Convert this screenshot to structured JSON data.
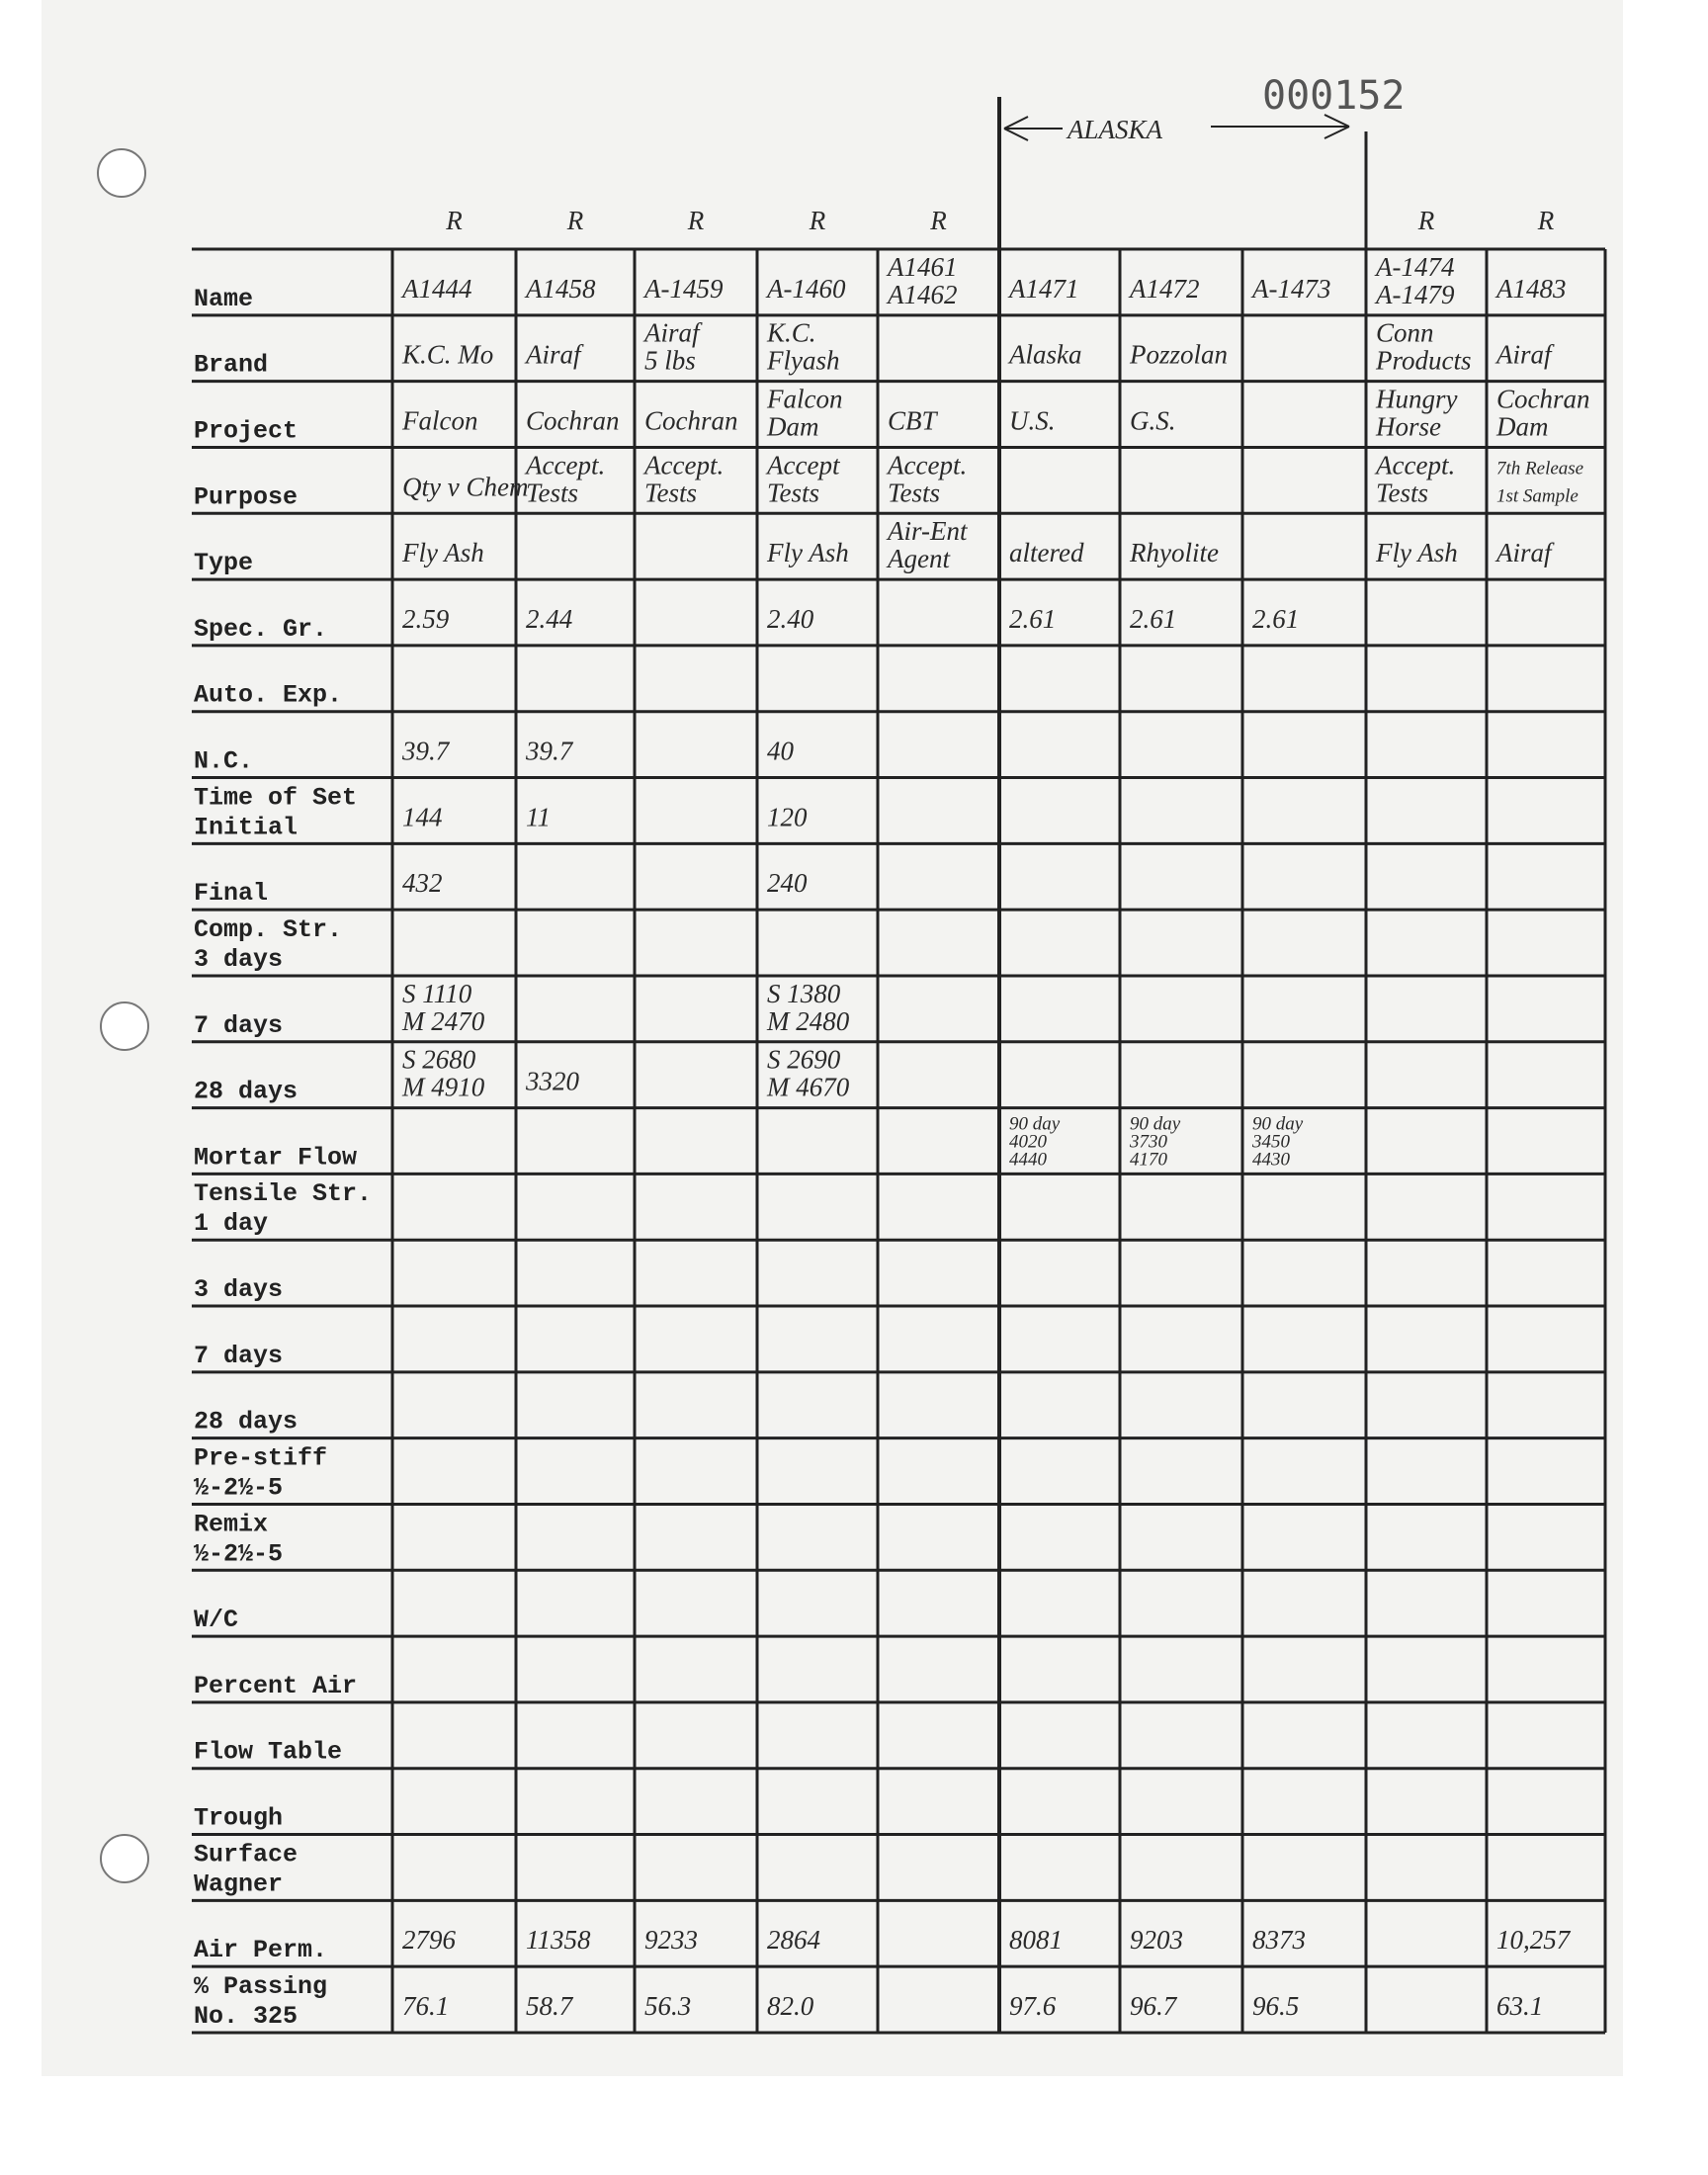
{
  "header": {
    "page_number": "000152",
    "region_label": "ALASKA",
    "marks": [
      "R",
      "R",
      "R",
      "R",
      "R",
      null,
      null,
      null,
      "R",
      "R"
    ]
  },
  "table": {
    "rows": [
      {
        "label": [
          "Name"
        ],
        "cells": [
          "A1444",
          "A1458",
          "A-1459",
          "A-1460",
          [
            "A1461",
            "A1462"
          ],
          "A1471",
          "A1472",
          "A-1473",
          [
            "A-1474",
            "A-1479"
          ],
          "A1483"
        ]
      },
      {
        "label": [
          "Brand"
        ],
        "cells": [
          "K.C. Mo",
          "Airaf",
          [
            "Airaf",
            "5 lbs"
          ],
          [
            "K.C.",
            "Flyash"
          ],
          null,
          "Alaska",
          "Pozzolan",
          null,
          [
            "Conn",
            "Products"
          ],
          "Airaf"
        ]
      },
      {
        "label": [
          "Project"
        ],
        "cells": [
          "Falcon",
          "Cochran",
          "Cochran",
          [
            "Falcon",
            "Dam"
          ],
          "CBT",
          "U.S.",
          "G.S.",
          null,
          [
            "Hungry",
            "Horse"
          ],
          [
            "Cochran",
            "Dam"
          ]
        ]
      },
      {
        "label": [
          "Purpose"
        ],
        "cells": [
          "Qty v Chem",
          [
            "Accept.",
            "Tests"
          ],
          [
            "Accept.",
            "Tests"
          ],
          [
            "Accept",
            "Tests"
          ],
          [
            "Accept.",
            "Tests"
          ],
          null,
          null,
          null,
          [
            "Accept.",
            "Tests"
          ],
          [
            "7th Release",
            "1st Sample"
          ]
        ]
      },
      {
        "label": [
          "Type"
        ],
        "cells": [
          "Fly Ash",
          null,
          null,
          "Fly Ash",
          [
            "Air-Ent",
            "Agent"
          ],
          "altered",
          "Rhyolite",
          null,
          "Fly Ash",
          "Airaf"
        ]
      },
      {
        "label": [
          "Spec. Gr."
        ],
        "cells": [
          "2.59",
          "2.44",
          null,
          "2.40",
          null,
          "2.61",
          "2.61",
          "2.61",
          null,
          null
        ]
      },
      {
        "label": [
          "Auto. Exp."
        ],
        "cells": [
          null,
          null,
          null,
          null,
          null,
          null,
          null,
          null,
          null,
          null
        ]
      },
      {
        "label": [
          "N.C."
        ],
        "cells": [
          "39.7",
          "39.7",
          null,
          "40",
          null,
          null,
          null,
          null,
          null,
          null
        ]
      },
      {
        "label": [
          "Time of Set",
          "Initial"
        ],
        "cells": [
          "144",
          "11",
          null,
          "120",
          null,
          null,
          null,
          null,
          null,
          null
        ]
      },
      {
        "label": [
          "Final"
        ],
        "cells": [
          "432",
          null,
          null,
          "240",
          null,
          null,
          null,
          null,
          null,
          null
        ]
      },
      {
        "label": [
          "Comp. Str.",
          "3 days"
        ],
        "cells": [
          null,
          null,
          null,
          null,
          null,
          null,
          null,
          null,
          null,
          null
        ]
      },
      {
        "label": [
          "7 days"
        ],
        "cells": [
          [
            "S 1110",
            "M 2470"
          ],
          null,
          null,
          [
            "S 1380",
            "M 2480"
          ],
          null,
          null,
          null,
          null,
          null,
          null
        ]
      },
      {
        "label": [
          "28 days"
        ],
        "cells": [
          [
            "S 2680",
            "M 4910"
          ],
          "3320",
          null,
          [
            "S 2690",
            "M 4670"
          ],
          null,
          null,
          null,
          null,
          null,
          null
        ]
      },
      {
        "label": [
          "Mortar Flow"
        ],
        "cells": [
          null,
          null,
          null,
          null,
          null,
          [
            "90 day",
            "4020",
            "4440"
          ],
          [
            "90 day",
            "3730",
            "4170"
          ],
          [
            "90 day",
            "3450",
            "4430"
          ],
          null,
          null
        ]
      },
      {
        "label": [
          "Tensile Str.",
          "1 day"
        ],
        "cells": [
          null,
          null,
          null,
          null,
          null,
          null,
          null,
          null,
          null,
          null
        ]
      },
      {
        "label": [
          "3 days"
        ],
        "cells": [
          null,
          null,
          null,
          null,
          null,
          null,
          null,
          null,
          null,
          null
        ]
      },
      {
        "label": [
          "7 days"
        ],
        "cells": [
          null,
          null,
          null,
          null,
          null,
          null,
          null,
          null,
          null,
          null
        ]
      },
      {
        "label": [
          "28 days"
        ],
        "cells": [
          null,
          null,
          null,
          null,
          null,
          null,
          null,
          null,
          null,
          null
        ]
      },
      {
        "label": [
          "Pre-stiff",
          "½-2½-5"
        ],
        "cells": [
          null,
          null,
          null,
          null,
          null,
          null,
          null,
          null,
          null,
          null
        ]
      },
      {
        "label": [
          "Remix",
          "½-2½-5"
        ],
        "cells": [
          null,
          null,
          null,
          null,
          null,
          null,
          null,
          null,
          null,
          null
        ]
      },
      {
        "label": [
          "W/C"
        ],
        "cells": [
          null,
          null,
          null,
          null,
          null,
          null,
          null,
          null,
          null,
          null
        ]
      },
      {
        "label": [
          "Percent Air"
        ],
        "cells": [
          null,
          null,
          null,
          null,
          null,
          null,
          null,
          null,
          null,
          null
        ]
      },
      {
        "label": [
          "Flow Table"
        ],
        "cells": [
          null,
          null,
          null,
          null,
          null,
          null,
          null,
          null,
          null,
          null
        ]
      },
      {
        "label": [
          "Trough"
        ],
        "cells": [
          null,
          null,
          null,
          null,
          null,
          null,
          null,
          null,
          null,
          null
        ]
      },
      {
        "label": [
          "Surface",
          "Wagner"
        ],
        "cells": [
          null,
          null,
          null,
          null,
          null,
          null,
          null,
          null,
          null,
          null
        ]
      },
      {
        "label": [
          "Air Perm."
        ],
        "cells": [
          "2796",
          "11358",
          "9233",
          "2864",
          null,
          "8081",
          "9203",
          "8373",
          null,
          "10,257"
        ]
      },
      {
        "label": [
          "% Passing",
          "No. 325"
        ],
        "cells": [
          "76.1",
          "58.7",
          "56.3",
          "82.0",
          null,
          "97.6",
          "96.7",
          "96.5",
          null,
          "63.1"
        ]
      }
    ]
  }
}
